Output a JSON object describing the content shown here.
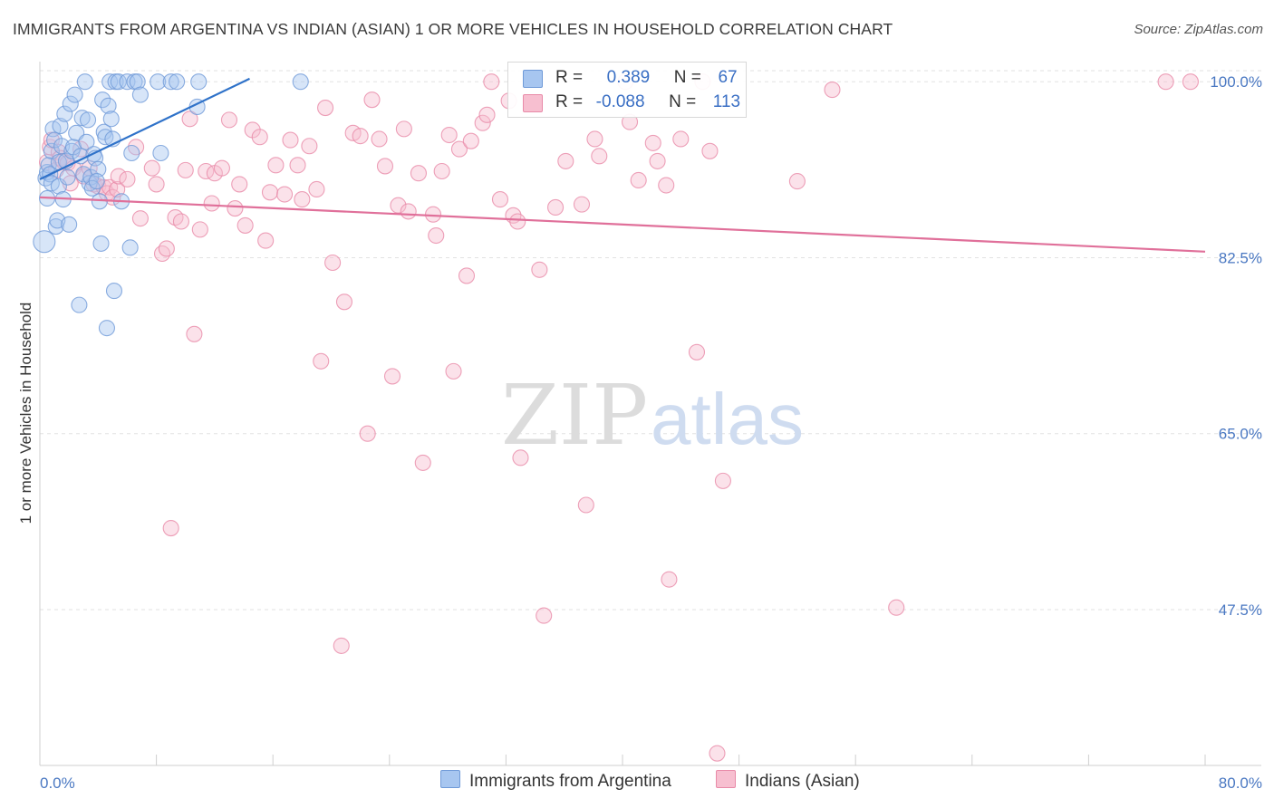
{
  "title": "IMMIGRANTS FROM ARGENTINA VS INDIAN (ASIAN) 1 OR MORE VEHICLES IN HOUSEHOLD CORRELATION CHART",
  "source": "Source: ZipAtlas.com",
  "watermark": {
    "zip": "ZIP",
    "atlas": "atlas"
  },
  "legend": {
    "rows": [
      {
        "r_label": "R =",
        "r_value": "0.389",
        "n_label": "N =",
        "n_value": "67",
        "color": "#a7c6f0",
        "border": "#6f9ad8"
      },
      {
        "r_label": "R =",
        "r_value": "-0.088",
        "n_label": "N =",
        "n_value": "113",
        "color": "#f7bfd0",
        "border": "#e88aa8"
      }
    ]
  },
  "bottom_legend": {
    "argentina": "Immigrants from Argentina",
    "indian": "Indians (Asian)"
  },
  "chart_data": {
    "type": "scatter",
    "xlabel": "",
    "ylabel": "1 or more Vehicles in Household",
    "xlim": [
      0,
      80
    ],
    "ylim": [
      32,
      102
    ],
    "x_tick_labels": [
      "0.0%",
      "80.0%"
    ],
    "y_ticks": [
      47.5,
      65.0,
      82.5,
      100.0
    ],
    "y_tick_labels": [
      "47.5%",
      "65.0%",
      "82.5%",
      "100.0%"
    ],
    "grid": true,
    "legend_position": "top-center",
    "colors": {
      "argentina": "#6f9ad8",
      "argentina_fill": "#a7c6f0",
      "argentina_line": "#2f72c9",
      "indian": "#e88aa8",
      "indian_fill": "#f7bfd0",
      "indian_line": "#e0709a"
    },
    "series": [
      {
        "name": "Immigrants from Argentina",
        "trend": {
          "x": [
            0.0,
            14.4
          ],
          "y": [
            90.3,
            100.3
          ]
        },
        "points": [
          [
            0.3,
            84.1
          ],
          [
            0.4,
            90.4
          ],
          [
            0.5,
            88.4
          ],
          [
            0.5,
            91.0
          ],
          [
            0.6,
            91.7
          ],
          [
            0.7,
            90.8
          ],
          [
            0.8,
            89.9
          ],
          [
            0.8,
            93.1
          ],
          [
            0.9,
            95.3
          ],
          [
            1.0,
            94.2
          ],
          [
            1.1,
            85.6
          ],
          [
            1.2,
            86.2
          ],
          [
            1.3,
            89.6
          ],
          [
            1.3,
            92.0
          ],
          [
            1.4,
            95.6
          ],
          [
            1.5,
            93.6
          ],
          [
            1.6,
            88.3
          ],
          [
            1.7,
            96.8
          ],
          [
            1.8,
            92.1
          ],
          [
            1.9,
            90.5
          ],
          [
            2.0,
            85.8
          ],
          [
            2.1,
            97.8
          ],
          [
            2.2,
            93.1
          ],
          [
            2.3,
            93.5
          ],
          [
            2.4,
            98.7
          ],
          [
            2.5,
            94.9
          ],
          [
            2.7,
            77.8
          ],
          [
            2.8,
            92.6
          ],
          [
            2.9,
            96.4
          ],
          [
            3.0,
            90.8
          ],
          [
            3.1,
            100.0
          ],
          [
            3.2,
            94.0
          ],
          [
            3.3,
            96.2
          ],
          [
            3.4,
            89.9
          ],
          [
            3.5,
            90.5
          ],
          [
            3.6,
            89.4
          ],
          [
            3.7,
            92.8
          ],
          [
            3.8,
            92.4
          ],
          [
            4.0,
            91.3
          ],
          [
            4.1,
            88.1
          ],
          [
            4.2,
            83.9
          ],
          [
            4.3,
            98.2
          ],
          [
            4.4,
            95.0
          ],
          [
            4.5,
            94.5
          ],
          [
            4.6,
            75.5
          ],
          [
            4.7,
            97.6
          ],
          [
            4.8,
            100.0
          ],
          [
            4.9,
            96.3
          ],
          [
            5.0,
            94.3
          ],
          [
            5.1,
            79.2
          ],
          [
            5.2,
            100.0
          ],
          [
            5.4,
            100.0
          ],
          [
            5.6,
            88.1
          ],
          [
            6.0,
            100.0
          ],
          [
            6.2,
            83.5
          ],
          [
            6.3,
            92.9
          ],
          [
            6.5,
            100.0
          ],
          [
            6.7,
            100.0
          ],
          [
            6.9,
            98.7
          ],
          [
            8.1,
            100.0
          ],
          [
            8.3,
            92.9
          ],
          [
            9.0,
            100.0
          ],
          [
            9.4,
            100.0
          ],
          [
            10.9,
            100.0
          ],
          [
            10.8,
            97.5
          ],
          [
            17.9,
            100.0
          ],
          [
            3.9,
            90.1
          ]
        ]
      },
      {
        "name": "Indians (Asian)",
        "trend": {
          "x": [
            0.0,
            80.0
          ],
          "y": [
            88.5,
            83.1
          ]
        },
        "points": [
          [
            0.5,
            92.0
          ],
          [
            0.7,
            93.5
          ],
          [
            0.8,
            94.2
          ],
          [
            1.1,
            91.2
          ],
          [
            1.3,
            93.0
          ],
          [
            1.4,
            92.4
          ],
          [
            1.6,
            92.1
          ],
          [
            1.9,
            91.9
          ],
          [
            2.3,
            91.4
          ],
          [
            2.8,
            93.3
          ],
          [
            3.0,
            90.6
          ],
          [
            3.4,
            91.4
          ],
          [
            3.7,
            89.8
          ],
          [
            4.0,
            89.6
          ],
          [
            4.4,
            89.5
          ],
          [
            4.6,
            88.9
          ],
          [
            4.8,
            89.5
          ],
          [
            5.0,
            88.5
          ],
          [
            5.3,
            89.3
          ],
          [
            5.4,
            90.6
          ],
          [
            6.0,
            90.3
          ],
          [
            6.6,
            93.5
          ],
          [
            6.9,
            86.4
          ],
          [
            7.7,
            91.4
          ],
          [
            8.0,
            89.8
          ],
          [
            8.4,
            82.9
          ],
          [
            8.7,
            83.4
          ],
          [
            9.0,
            55.6
          ],
          [
            9.3,
            86.5
          ],
          [
            9.7,
            86.1
          ],
          [
            10.0,
            91.2
          ],
          [
            10.3,
            96.3
          ],
          [
            10.6,
            74.9
          ],
          [
            11.0,
            85.3
          ],
          [
            11.4,
            91.1
          ],
          [
            11.8,
            87.9
          ],
          [
            12.0,
            90.9
          ],
          [
            12.5,
            91.4
          ],
          [
            13.0,
            96.2
          ],
          [
            13.4,
            87.4
          ],
          [
            13.7,
            89.8
          ],
          [
            14.1,
            85.7
          ],
          [
            14.6,
            95.2
          ],
          [
            15.1,
            94.5
          ],
          [
            15.5,
            84.2
          ],
          [
            15.8,
            89.0
          ],
          [
            16.2,
            91.7
          ],
          [
            16.8,
            88.8
          ],
          [
            17.2,
            94.2
          ],
          [
            17.7,
            91.7
          ],
          [
            18.0,
            88.3
          ],
          [
            18.5,
            93.6
          ],
          [
            19.0,
            89.3
          ],
          [
            19.3,
            72.2
          ],
          [
            19.6,
            97.4
          ],
          [
            20.1,
            82.0
          ],
          [
            20.7,
            43.9
          ],
          [
            20.9,
            78.1
          ],
          [
            21.5,
            94.9
          ],
          [
            22.0,
            94.6
          ],
          [
            22.5,
            65.0
          ],
          [
            22.8,
            98.2
          ],
          [
            23.3,
            94.3
          ],
          [
            23.7,
            91.6
          ],
          [
            24.2,
            70.7
          ],
          [
            24.6,
            87.7
          ],
          [
            25.0,
            95.3
          ],
          [
            25.3,
            87.1
          ],
          [
            26.0,
            90.9
          ],
          [
            26.3,
            62.1
          ],
          [
            27.0,
            86.8
          ],
          [
            27.2,
            84.7
          ],
          [
            27.6,
            91.1
          ],
          [
            28.1,
            94.7
          ],
          [
            28.4,
            71.2
          ],
          [
            28.8,
            93.3
          ],
          [
            29.3,
            80.7
          ],
          [
            29.6,
            94.1
          ],
          [
            30.4,
            95.9
          ],
          [
            30.7,
            96.7
          ],
          [
            31.0,
            100.0
          ],
          [
            31.6,
            88.3
          ],
          [
            32.2,
            98.1
          ],
          [
            32.5,
            86.7
          ],
          [
            32.8,
            86.1
          ],
          [
            33.0,
            62.6
          ],
          [
            34.3,
            81.3
          ],
          [
            34.6,
            46.9
          ],
          [
            35.4,
            87.5
          ],
          [
            36.1,
            92.1
          ],
          [
            37.2,
            87.8
          ],
          [
            37.5,
            57.9
          ],
          [
            38.1,
            94.3
          ],
          [
            38.4,
            92.6
          ],
          [
            40.2,
            100.0
          ],
          [
            40.5,
            96.0
          ],
          [
            41.1,
            90.2
          ],
          [
            42.1,
            93.9
          ],
          [
            42.4,
            92.1
          ],
          [
            43.0,
            89.7
          ],
          [
            43.2,
            50.5
          ],
          [
            44.0,
            94.3
          ],
          [
            45.1,
            73.1
          ],
          [
            45.5,
            100.0
          ],
          [
            46.0,
            93.1
          ],
          [
            46.5,
            33.2
          ],
          [
            46.9,
            60.3
          ],
          [
            52.0,
            90.1
          ],
          [
            54.4,
            99.2
          ],
          [
            58.8,
            47.7
          ],
          [
            77.3,
            100.0
          ],
          [
            79.0,
            100.0
          ],
          [
            2.1,
            89.9
          ]
        ]
      }
    ]
  }
}
